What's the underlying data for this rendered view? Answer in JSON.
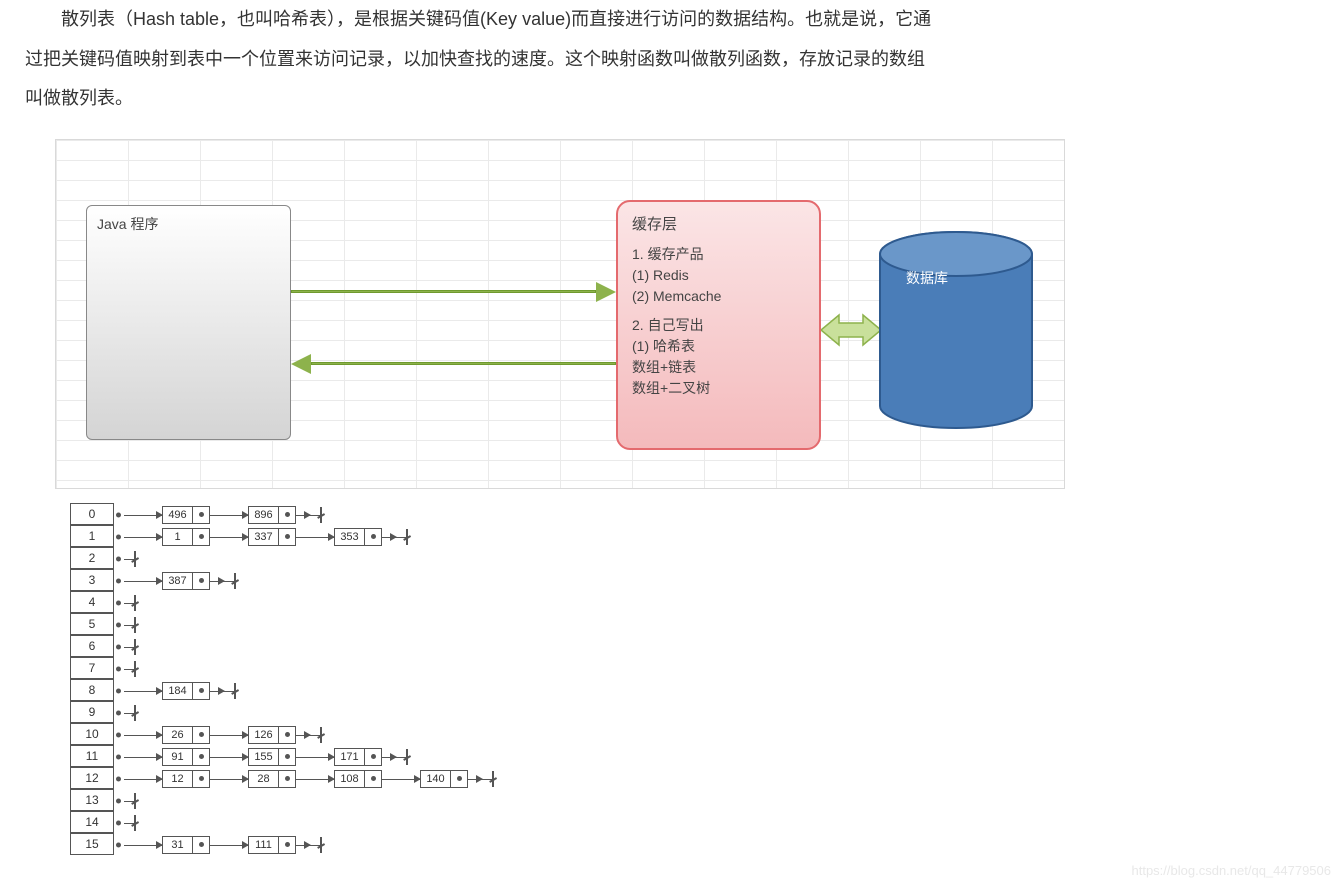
{
  "intro": {
    "line1_prefix": "散列表（Hash table，也叫哈希表），是根据关键码值(Key value)而直接进行访问的数据结构。也就是说，它通",
    "line2": "过把关键码值映射到表中一个位置来访问记录，以加快查找的速度。这个映射函数叫做散列函数，存放记录的数组",
    "line3": "叫做散列表。"
  },
  "diagram1": {
    "java_box_label": "Java 程序",
    "cache_box": {
      "title": "缓存层",
      "l1": "1. 缓存产品",
      "l2": "(1) Redis",
      "l3": "(2) Memcache",
      "l4": "2. 自己写出",
      "l5": "(1) 哈希表",
      "l6": "数组+链表",
      "l7": "数组+二叉树"
    },
    "db_label": "数据库",
    "colors": {
      "grid_border": "#d9d9d9",
      "grid_line": "#eaeaea",
      "java_bg_top": "#ffffff",
      "java_bg_bot": "#d4d4d4",
      "java_border": "#888888",
      "cache_bg_top": "#fbe5e6",
      "cache_bg_bot": "#f4babc",
      "cache_border": "#e46a6e",
      "arrow_fill": "#8db24c",
      "arrow_border": "#6f9a2e",
      "db_fill": "#4a7db8",
      "db_border": "#2e5a8f",
      "db_top": "#6a97c9"
    },
    "grid_cell_w": 72,
    "grid_cell_h": 20
  },
  "hash_table": {
    "colors": {
      "line": "#555555",
      "bg": "#ffffff"
    },
    "rows": [
      {
        "idx": "0",
        "nodes": [
          "496",
          "896"
        ]
      },
      {
        "idx": "1",
        "nodes": [
          "1",
          "337",
          "353"
        ]
      },
      {
        "idx": "2",
        "nodes": []
      },
      {
        "idx": "3",
        "nodes": [
          "387"
        ]
      },
      {
        "idx": "4",
        "nodes": []
      },
      {
        "idx": "5",
        "nodes": []
      },
      {
        "idx": "6",
        "nodes": []
      },
      {
        "idx": "7",
        "nodes": []
      },
      {
        "idx": "8",
        "nodes": [
          "184"
        ]
      },
      {
        "idx": "9",
        "nodes": []
      },
      {
        "idx": "10",
        "nodes": [
          "26",
          "126"
        ]
      },
      {
        "idx": "11",
        "nodes": [
          "91",
          "155",
          "171"
        ]
      },
      {
        "idx": "12",
        "nodes": [
          "12",
          "28",
          "108",
          "140"
        ]
      },
      {
        "idx": "13",
        "nodes": []
      },
      {
        "idx": "14",
        "nodes": []
      },
      {
        "idx": "15",
        "nodes": [
          "31",
          "111"
        ]
      }
    ]
  },
  "watermark": "https://blog.csdn.net/qq_44779506"
}
